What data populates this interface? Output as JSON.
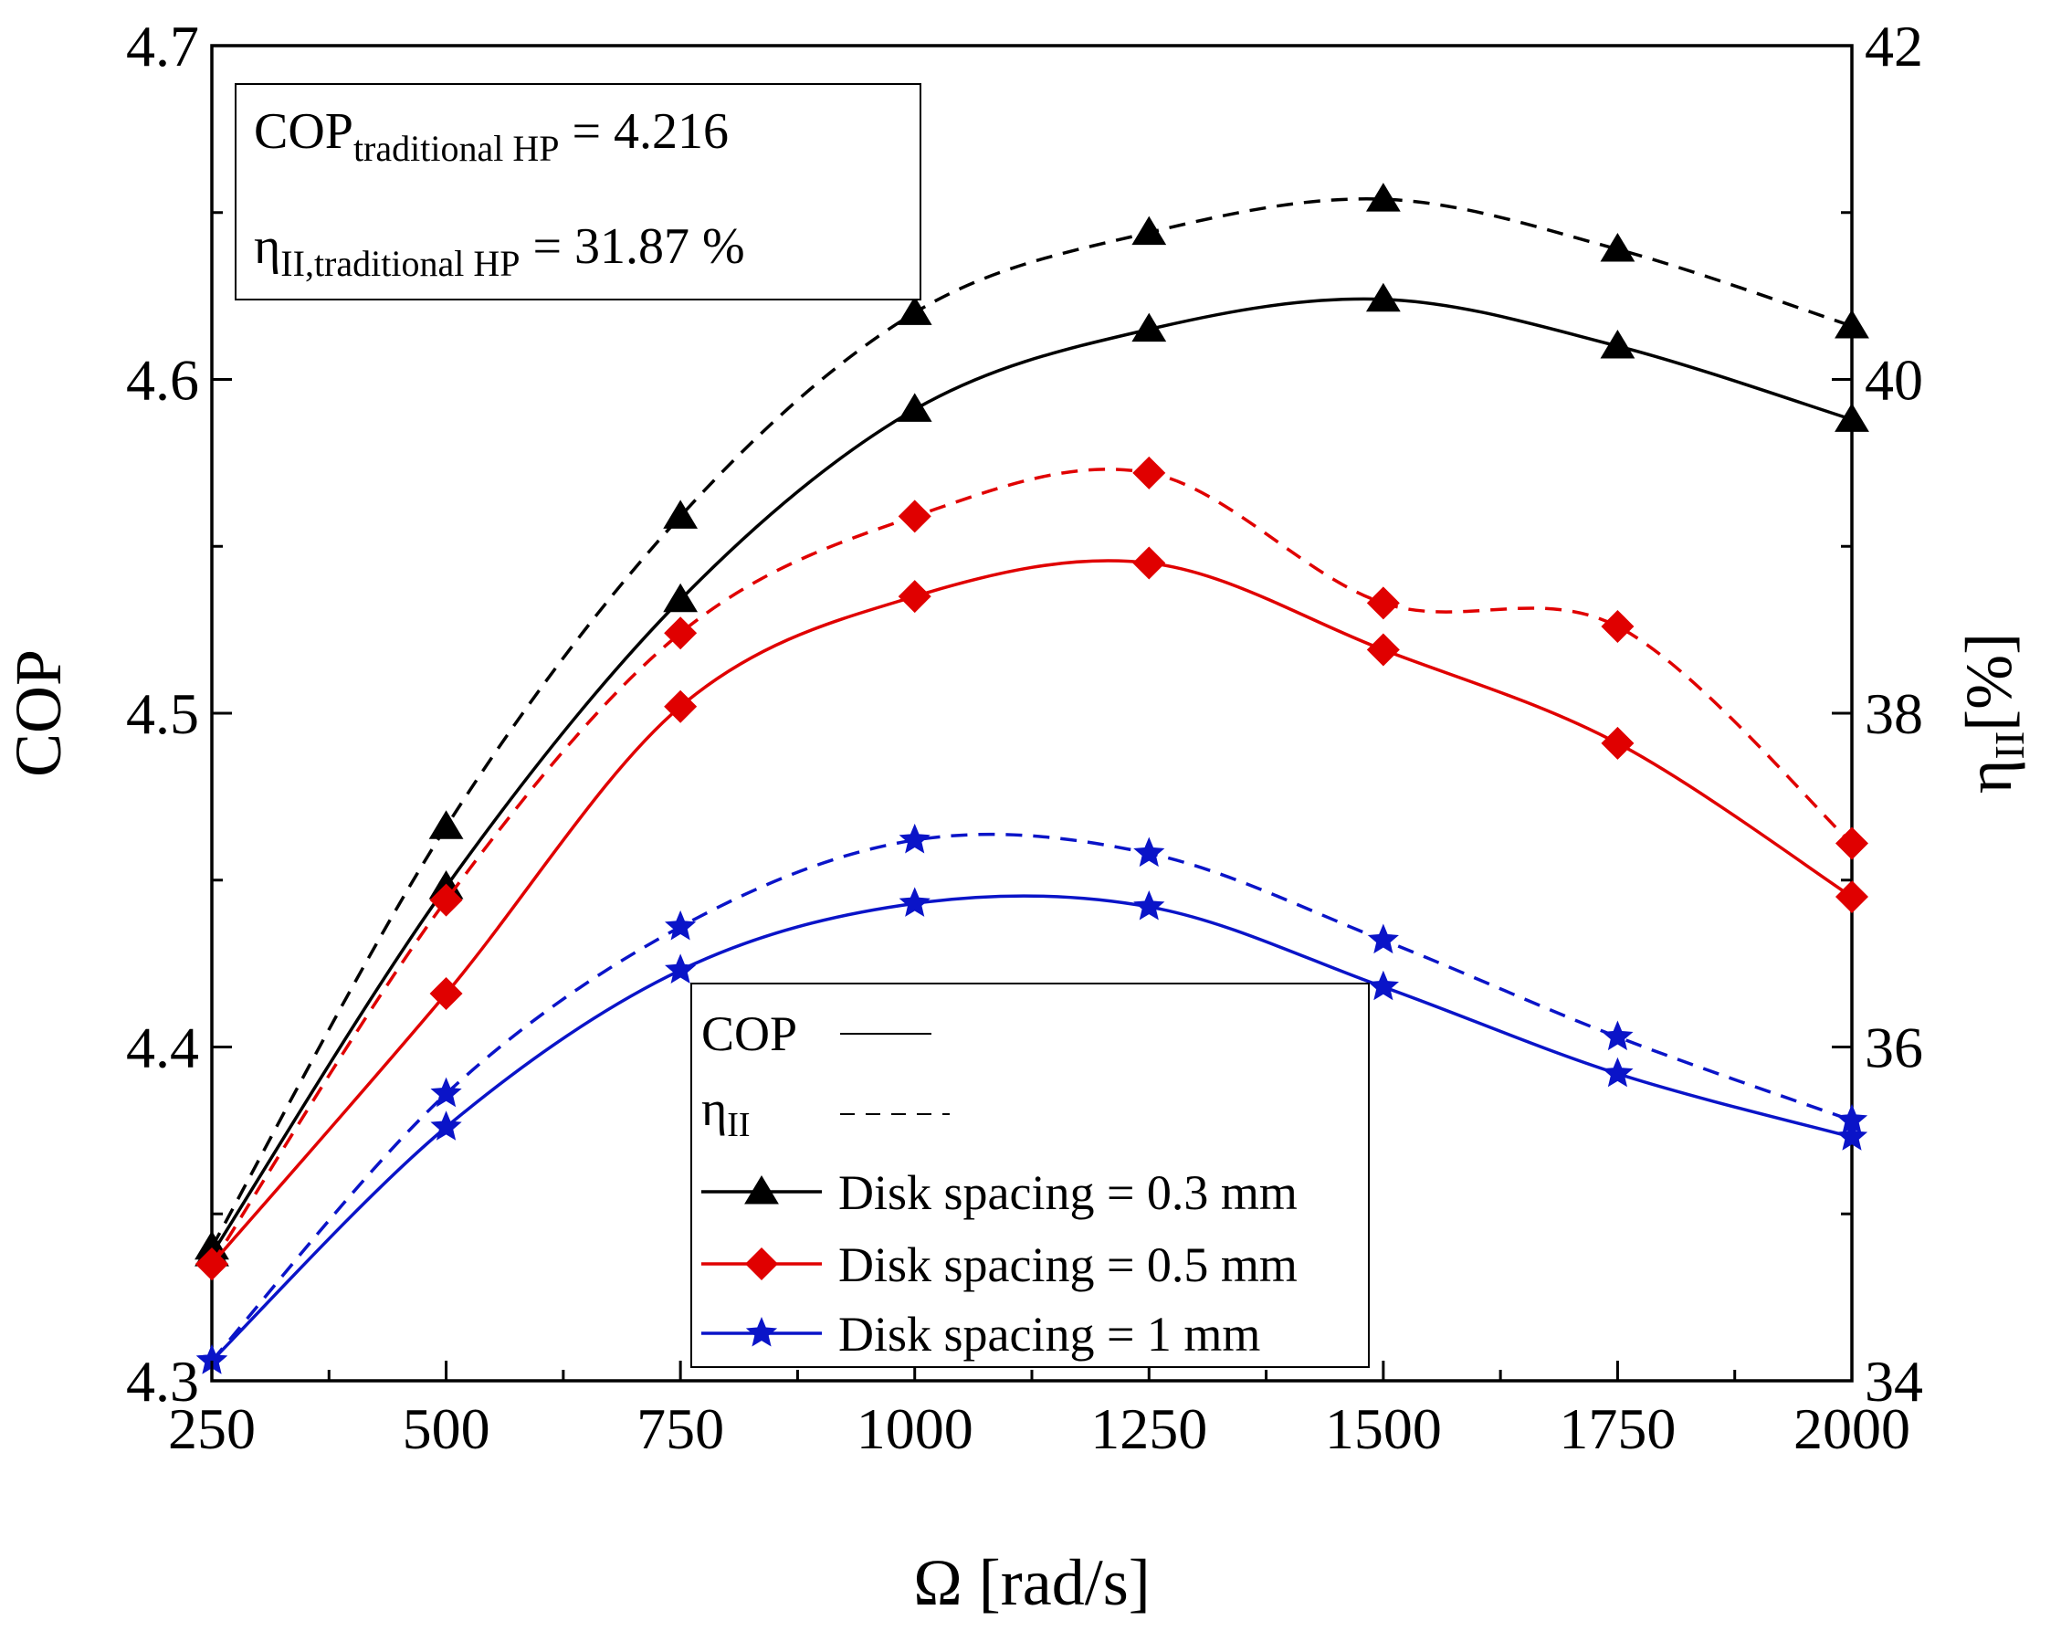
{
  "chart_data": {
    "type": "line",
    "xlabel": "Ω [rad/s]",
    "ylabel_left": "COP",
    "ylabel_right_main": "η",
    "ylabel_right_sub": "II",
    "ylabel_right_unit": "[%]",
    "x": [
      250,
      500,
      750,
      1000,
      1250,
      1500,
      1750,
      2000
    ],
    "x_ticks": [
      "250",
      "500",
      "750",
      "1000",
      "1250",
      "1500",
      "1750",
      "2000"
    ],
    "xlim": [
      250,
      2000
    ],
    "ylim_left": [
      4.3,
      4.7
    ],
    "y_ticks_left": [
      "4.3",
      "4.4",
      "4.5",
      "4.6",
      "4.7"
    ],
    "ylim_right": [
      34,
      42
    ],
    "y_ticks_right": [
      "34",
      "36",
      "38",
      "40",
      "42"
    ],
    "info": {
      "cop_prefix": "COP",
      "cop_sub": "traditional HP",
      "cop_value": " = 4.216",
      "eta_prefix": "η",
      "eta_sub": "II,traditional HP",
      "eta_value": " =  31.87 %"
    },
    "legend": {
      "cop_label": "COP",
      "eta_main": "η",
      "eta_sub": "II",
      "entries": [
        {
          "label": "Disk spacing = 0.3 mm",
          "color": "#000000",
          "marker": "triangle"
        },
        {
          "label": "Disk spacing = 0.5 mm",
          "color": "#e00000",
          "marker": "diamond"
        },
        {
          "label": "Disk spacing = 1 mm",
          "color": "#0a14c8",
          "marker": "star"
        }
      ]
    },
    "series": [
      {
        "name": "COP, Disk spacing = 0.3 mm",
        "axis": "left",
        "style": "solid",
        "color": "#000000",
        "marker": "triangle",
        "values": [
          4.338,
          4.448,
          4.534,
          4.591,
          4.615,
          4.624,
          4.61,
          4.588
        ]
      },
      {
        "name": "ηII, Disk spacing = 0.3 mm",
        "axis": "right",
        "style": "dashed",
        "color": "#000000",
        "marker": "triangle",
        "values": [
          34.8,
          37.32,
          39.18,
          40.4,
          40.88,
          41.08,
          40.78,
          40.32
        ]
      },
      {
        "name": "COP, Disk spacing = 0.5 mm",
        "axis": "left",
        "style": "solid",
        "color": "#e00000",
        "marker": "diamond",
        "values": [
          4.335,
          4.416,
          4.502,
          4.535,
          4.545,
          4.519,
          4.491,
          4.445
        ]
      },
      {
        "name": "ηII, Disk spacing = 0.5 mm",
        "axis": "right",
        "style": "dashed",
        "color": "#e00000",
        "marker": "diamond",
        "values": [
          34.7,
          36.88,
          38.48,
          39.18,
          39.44,
          38.66,
          38.52,
          37.22
        ]
      },
      {
        "name": "COP, Disk spacing = 1 mm",
        "axis": "left",
        "style": "solid",
        "color": "#0a14c8",
        "marker": "star",
        "values": [
          4.306,
          4.376,
          4.423,
          4.443,
          4.442,
          4.418,
          4.392,
          4.373
        ]
      },
      {
        "name": "ηII, Disk spacing = 1 mm",
        "axis": "right",
        "style": "dashed",
        "color": "#0a14c8",
        "marker": "star",
        "values": [
          34.12,
          35.72,
          36.72,
          37.24,
          37.16,
          36.64,
          36.06,
          35.56
        ]
      }
    ]
  }
}
